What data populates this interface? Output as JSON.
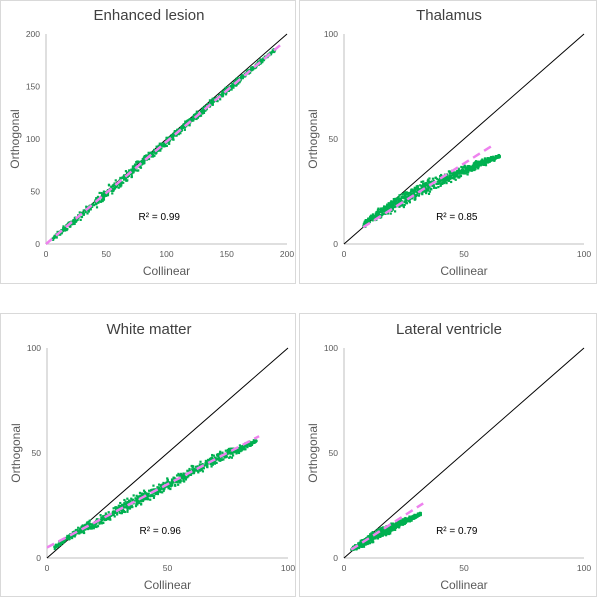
{
  "chart_data": [
    {
      "type": "scatter",
      "title": "Enhanced lesion",
      "xlabel": "Collinear",
      "ylabel": "Orthogonal",
      "xlim": [
        0,
        200
      ],
      "ylim": [
        0,
        200
      ],
      "xticks": [
        "0",
        "50",
        "100",
        "150",
        "200"
      ],
      "yticks": [
        "0",
        "50",
        "100",
        "150",
        "200"
      ],
      "r2_label": "R² = 0.99",
      "r2": 0.99,
      "point_color": "#00b050",
      "identity_line_color": "#000000",
      "fit_line_color": "#ee82ee",
      "fit_line": {
        "x": [
          0,
          195
        ],
        "y": [
          0,
          190
        ]
      },
      "identity_line": {
        "x": [
          0,
          200
        ],
        "y": [
          0,
          200
        ]
      },
      "cloud": [
        {
          "x": 5,
          "y_center": 5,
          "spread": 3
        },
        {
          "x": 20,
          "y_center": 19,
          "spread": 5
        },
        {
          "x": 40,
          "y_center": 38,
          "spread": 7
        },
        {
          "x": 60,
          "y_center": 58,
          "spread": 7
        },
        {
          "x": 80,
          "y_center": 78,
          "spread": 6
        },
        {
          "x": 100,
          "y_center": 97,
          "spread": 6
        },
        {
          "x": 120,
          "y_center": 117,
          "spread": 5
        },
        {
          "x": 140,
          "y_center": 137,
          "spread": 5
        },
        {
          "x": 160,
          "y_center": 156,
          "spread": 4
        },
        {
          "x": 175,
          "y_center": 171,
          "spread": 3
        },
        {
          "x": 190,
          "y_center": 185,
          "spread": 2
        }
      ]
    },
    {
      "type": "scatter",
      "title": "Thalamus",
      "xlabel": "Collinear",
      "ylabel": "Orthogonal",
      "xlim": [
        0,
        100
      ],
      "ylim": [
        0,
        100
      ],
      "xticks": [
        "0",
        "50",
        "100"
      ],
      "yticks": [
        "0",
        "50",
        "100"
      ],
      "r2_label": "R² = 0.85",
      "r2": 0.85,
      "point_color": "#00b050",
      "identity_line_color": "#000000",
      "fit_line_color": "#ee82ee",
      "fit_line": {
        "x": [
          8,
          62
        ],
        "y": [
          8,
          47
        ]
      },
      "identity_line": {
        "x": [
          0,
          100
        ],
        "y": [
          0,
          100
        ]
      },
      "cloud": [
        {
          "x": 8,
          "y_center": 9,
          "spread": 1.5
        },
        {
          "x": 12,
          "y_center": 13,
          "spread": 3
        },
        {
          "x": 18,
          "y_center": 17,
          "spread": 4
        },
        {
          "x": 24,
          "y_center": 21,
          "spread": 5
        },
        {
          "x": 30,
          "y_center": 25,
          "spread": 5
        },
        {
          "x": 36,
          "y_center": 28,
          "spread": 5
        },
        {
          "x": 42,
          "y_center": 31,
          "spread": 4
        },
        {
          "x": 48,
          "y_center": 34,
          "spread": 3
        },
        {
          "x": 54,
          "y_center": 37,
          "spread": 2.5
        },
        {
          "x": 60,
          "y_center": 40,
          "spread": 2
        },
        {
          "x": 65,
          "y_center": 42,
          "spread": 1
        }
      ]
    },
    {
      "type": "scatter",
      "title": "White matter",
      "xlabel": "Collinear",
      "ylabel": "Orthogonal",
      "xlim": [
        0,
        100
      ],
      "ylim": [
        0,
        100
      ],
      "xticks": [
        "0",
        "50",
        "100"
      ],
      "yticks": [
        "0",
        "50",
        "100"
      ],
      "r2_label": "R² = 0.96",
      "r2": 0.96,
      "point_color": "#00b050",
      "identity_line_color": "#000000",
      "fit_line_color": "#ee82ee",
      "fit_line": {
        "x": [
          0,
          88
        ],
        "y": [
          5,
          58
        ]
      },
      "identity_line": {
        "x": [
          0,
          100
        ],
        "y": [
          0,
          100
        ]
      },
      "cloud": [
        {
          "x": 3,
          "y_center": 5,
          "spread": 1.5
        },
        {
          "x": 10,
          "y_center": 11,
          "spread": 2
        },
        {
          "x": 17,
          "y_center": 15,
          "spread": 3
        },
        {
          "x": 24,
          "y_center": 19,
          "spread": 3.5
        },
        {
          "x": 31,
          "y_center": 24,
          "spread": 4
        },
        {
          "x": 38,
          "y_center": 28,
          "spread": 4
        },
        {
          "x": 45,
          "y_center": 32,
          "spread": 4
        },
        {
          "x": 52,
          "y_center": 36,
          "spread": 4
        },
        {
          "x": 60,
          "y_center": 41,
          "spread": 4
        },
        {
          "x": 68,
          "y_center": 46,
          "spread": 3.5
        },
        {
          "x": 76,
          "y_center": 50,
          "spread": 3
        },
        {
          "x": 82,
          "y_center": 53,
          "spread": 2
        },
        {
          "x": 87,
          "y_center": 56,
          "spread": 1.5
        }
      ]
    },
    {
      "type": "scatter",
      "title": "Lateral ventricle",
      "xlabel": "Collinear",
      "ylabel": "Orthogonal",
      "xlim": [
        0,
        100
      ],
      "ylim": [
        0,
        100
      ],
      "xticks": [
        "0",
        "50",
        "100"
      ],
      "yticks": [
        "0",
        "50",
        "100"
      ],
      "r2_label": "R² = 0.79",
      "r2": 0.79,
      "point_color": "#00b050",
      "identity_line_color": "#000000",
      "fit_line_color": "#ee82ee",
      "fit_line": {
        "x": [
          3,
          33
        ],
        "y": [
          4,
          26
        ]
      },
      "identity_line": {
        "x": [
          0,
          100
        ],
        "y": [
          0,
          100
        ]
      },
      "cloud": [
        {
          "x": 3,
          "y_center": 4,
          "spread": 1
        },
        {
          "x": 6,
          "y_center": 6,
          "spread": 2
        },
        {
          "x": 9,
          "y_center": 8,
          "spread": 3
        },
        {
          "x": 12,
          "y_center": 10,
          "spread": 3
        },
        {
          "x": 15,
          "y_center": 12,
          "spread": 3
        },
        {
          "x": 18,
          "y_center": 13,
          "spread": 3
        },
        {
          "x": 21,
          "y_center": 15,
          "spread": 2.5
        },
        {
          "x": 24,
          "y_center": 17,
          "spread": 2
        },
        {
          "x": 28,
          "y_center": 19,
          "spread": 1.5
        },
        {
          "x": 32,
          "y_center": 21,
          "spread": 1
        }
      ]
    }
  ]
}
